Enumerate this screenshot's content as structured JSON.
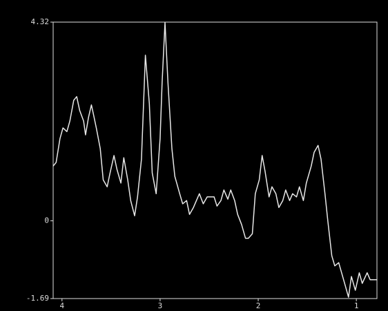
{
  "chart_data": {
    "type": "line",
    "color": "#e8e8e8",
    "xlim": [
      4.09,
      0.79
    ],
    "xticks": [
      4,
      3,
      2,
      1
    ],
    "ylim": [
      -1.69,
      4.32
    ],
    "yticks": [
      4.32,
      0,
      -1.69
    ],
    "x": [
      4.09,
      4.06,
      4.02,
      3.99,
      3.95,
      3.92,
      3.88,
      3.85,
      3.82,
      3.78,
      3.76,
      3.73,
      3.7,
      3.68,
      3.65,
      3.61,
      3.58,
      3.54,
      3.51,
      3.47,
      3.44,
      3.4,
      3.37,
      3.33,
      3.3,
      3.26,
      3.23,
      3.19,
      3.15,
      3.11,
      3.08,
      3.04,
      3.0,
      2.98,
      2.95,
      2.92,
      2.88,
      2.85,
      2.8,
      2.77,
      2.73,
      2.7,
      2.66,
      2.63,
      2.6,
      2.56,
      2.52,
      2.49,
      2.45,
      2.42,
      2.38,
      2.35,
      2.31,
      2.28,
      2.24,
      2.21,
      2.17,
      2.13,
      2.1,
      2.06,
      2.03,
      1.99,
      1.96,
      1.93,
      1.89,
      1.86,
      1.82,
      1.79,
      1.75,
      1.72,
      1.68,
      1.65,
      1.61,
      1.58,
      1.54,
      1.51,
      1.46,
      1.43,
      1.39,
      1.36,
      1.32,
      1.29,
      1.25,
      1.22,
      1.18,
      1.15,
      1.11,
      1.08,
      1.05,
      1.01,
      0.97,
      0.94,
      0.89,
      0.86,
      0.82,
      0.79
    ],
    "values": [
      1.19,
      1.27,
      1.79,
      2.02,
      1.94,
      2.17,
      2.62,
      2.7,
      2.4,
      2.17,
      1.87,
      2.25,
      2.52,
      2.32,
      2.02,
      1.57,
      0.89,
      0.74,
      1.04,
      1.42,
      1.12,
      0.82,
      1.37,
      0.89,
      0.44,
      0.11,
      0.52,
      1.34,
      3.6,
      2.55,
      1.04,
      0.59,
      1.79,
      3.0,
      4.31,
      3.0,
      1.57,
      0.97,
      0.59,
      0.37,
      0.44,
      0.14,
      0.29,
      0.44,
      0.59,
      0.37,
      0.52,
      0.52,
      0.52,
      0.32,
      0.44,
      0.67,
      0.47,
      0.67,
      0.44,
      0.14,
      -0.08,
      -0.38,
      -0.38,
      -0.28,
      0.59,
      0.89,
      1.42,
      1.07,
      0.52,
      0.74,
      0.59,
      0.29,
      0.44,
      0.67,
      0.44,
      0.59,
      0.52,
      0.74,
      0.44,
      0.82,
      1.19,
      1.49,
      1.64,
      1.34,
      0.59,
      -0.01,
      -0.76,
      -0.98,
      -0.91,
      -1.13,
      -1.43,
      -1.66,
      -1.21,
      -1.51,
      -1.13,
      -1.36,
      -1.13,
      -1.28,
      -1.28,
      -1.28
    ]
  }
}
